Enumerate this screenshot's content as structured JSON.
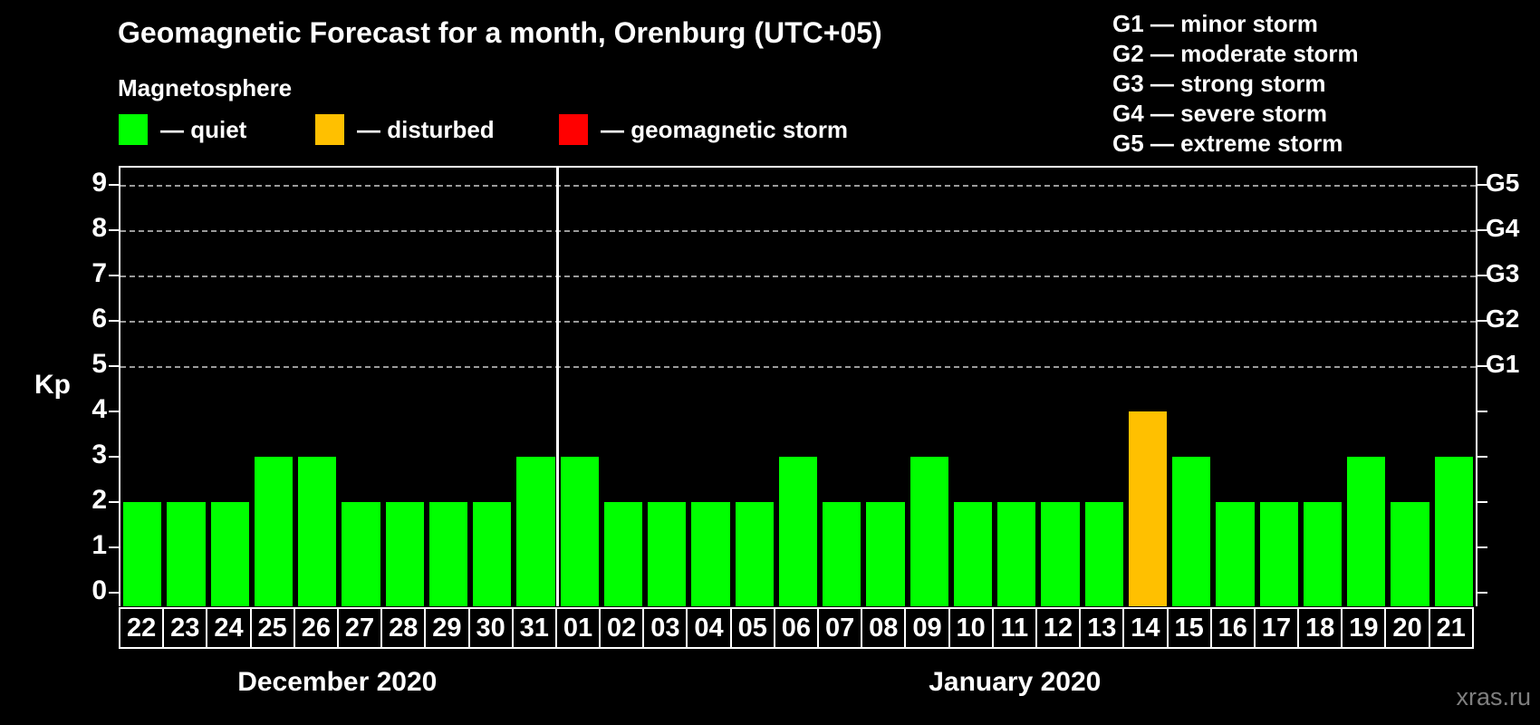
{
  "header": {
    "title": "Geomagnetic Forecast for a month, Orenburg (UTC+05)",
    "subtitle": "Magnetosphere"
  },
  "legend": {
    "items": [
      {
        "key": "quiet",
        "label": "— quiet",
        "color": "#00ff00",
        "x": 131
      },
      {
        "key": "disturbed",
        "label": "— disturbed",
        "color": "#ffc000",
        "x": 348
      },
      {
        "key": "storm",
        "label": "— geomagnetic storm",
        "color": "#ff0000",
        "x": 617
      }
    ]
  },
  "g_legend": {
    "lines": [
      "G1 — minor storm",
      "G2 — moderate storm",
      "G3 — strong storm",
      "G4 — severe storm",
      "G5 — extreme storm"
    ]
  },
  "watermark": "xras.ru",
  "chart_data": {
    "type": "bar",
    "title": "Geomagnetic Forecast for a month, Orenburg (UTC+05)",
    "ylabel": "Kp",
    "ylim": [
      -0.3,
      9.4
    ],
    "yticks": [
      0,
      1,
      2,
      3,
      4,
      5,
      6,
      7,
      8,
      9
    ],
    "gridlines_at_kp": [
      5,
      6,
      7,
      8,
      9
    ],
    "grid": "dashed-horizontal",
    "legend_position": "top",
    "right_axis_labels": [
      {
        "label": "G5",
        "kp": 9
      },
      {
        "label": "G4",
        "kp": 8
      },
      {
        "label": "G3",
        "kp": 7
      },
      {
        "label": "G2",
        "kp": 6
      },
      {
        "label": "G1",
        "kp": 5
      }
    ],
    "status_colors": {
      "quiet": "#00ff00",
      "disturbed": "#ffc000",
      "storm": "#ff0000"
    },
    "months": [
      {
        "label": "December 2020",
        "days": [
          {
            "day": "22",
            "kp": 2,
            "status": "quiet"
          },
          {
            "day": "23",
            "kp": 2,
            "status": "quiet"
          },
          {
            "day": "24",
            "kp": 2,
            "status": "quiet"
          },
          {
            "day": "25",
            "kp": 3,
            "status": "quiet"
          },
          {
            "day": "26",
            "kp": 3,
            "status": "quiet"
          },
          {
            "day": "27",
            "kp": 2,
            "status": "quiet"
          },
          {
            "day": "28",
            "kp": 2,
            "status": "quiet"
          },
          {
            "day": "29",
            "kp": 2,
            "status": "quiet"
          },
          {
            "day": "30",
            "kp": 2,
            "status": "quiet"
          },
          {
            "day": "31",
            "kp": 3,
            "status": "quiet"
          }
        ]
      },
      {
        "label": "January 2020",
        "days": [
          {
            "day": "01",
            "kp": 3,
            "status": "quiet"
          },
          {
            "day": "02",
            "kp": 2,
            "status": "quiet"
          },
          {
            "day": "03",
            "kp": 2,
            "status": "quiet"
          },
          {
            "day": "04",
            "kp": 2,
            "status": "quiet"
          },
          {
            "day": "05",
            "kp": 2,
            "status": "quiet"
          },
          {
            "day": "06",
            "kp": 3,
            "status": "quiet"
          },
          {
            "day": "07",
            "kp": 2,
            "status": "quiet"
          },
          {
            "day": "08",
            "kp": 2,
            "status": "quiet"
          },
          {
            "day": "09",
            "kp": 3,
            "status": "quiet"
          },
          {
            "day": "10",
            "kp": 2,
            "status": "quiet"
          },
          {
            "day": "11",
            "kp": 2,
            "status": "quiet"
          },
          {
            "day": "12",
            "kp": 2,
            "status": "quiet"
          },
          {
            "day": "13",
            "kp": 2,
            "status": "quiet"
          },
          {
            "day": "14",
            "kp": 4,
            "status": "disturbed"
          },
          {
            "day": "15",
            "kp": 3,
            "status": "quiet"
          },
          {
            "day": "16",
            "kp": 2,
            "status": "quiet"
          },
          {
            "day": "17",
            "kp": 2,
            "status": "quiet"
          },
          {
            "day": "18",
            "kp": 2,
            "status": "quiet"
          },
          {
            "day": "19",
            "kp": 3,
            "status": "quiet"
          },
          {
            "day": "20",
            "kp": 2,
            "status": "quiet"
          },
          {
            "day": "21",
            "kp": 3,
            "status": "quiet"
          }
        ]
      }
    ]
  }
}
